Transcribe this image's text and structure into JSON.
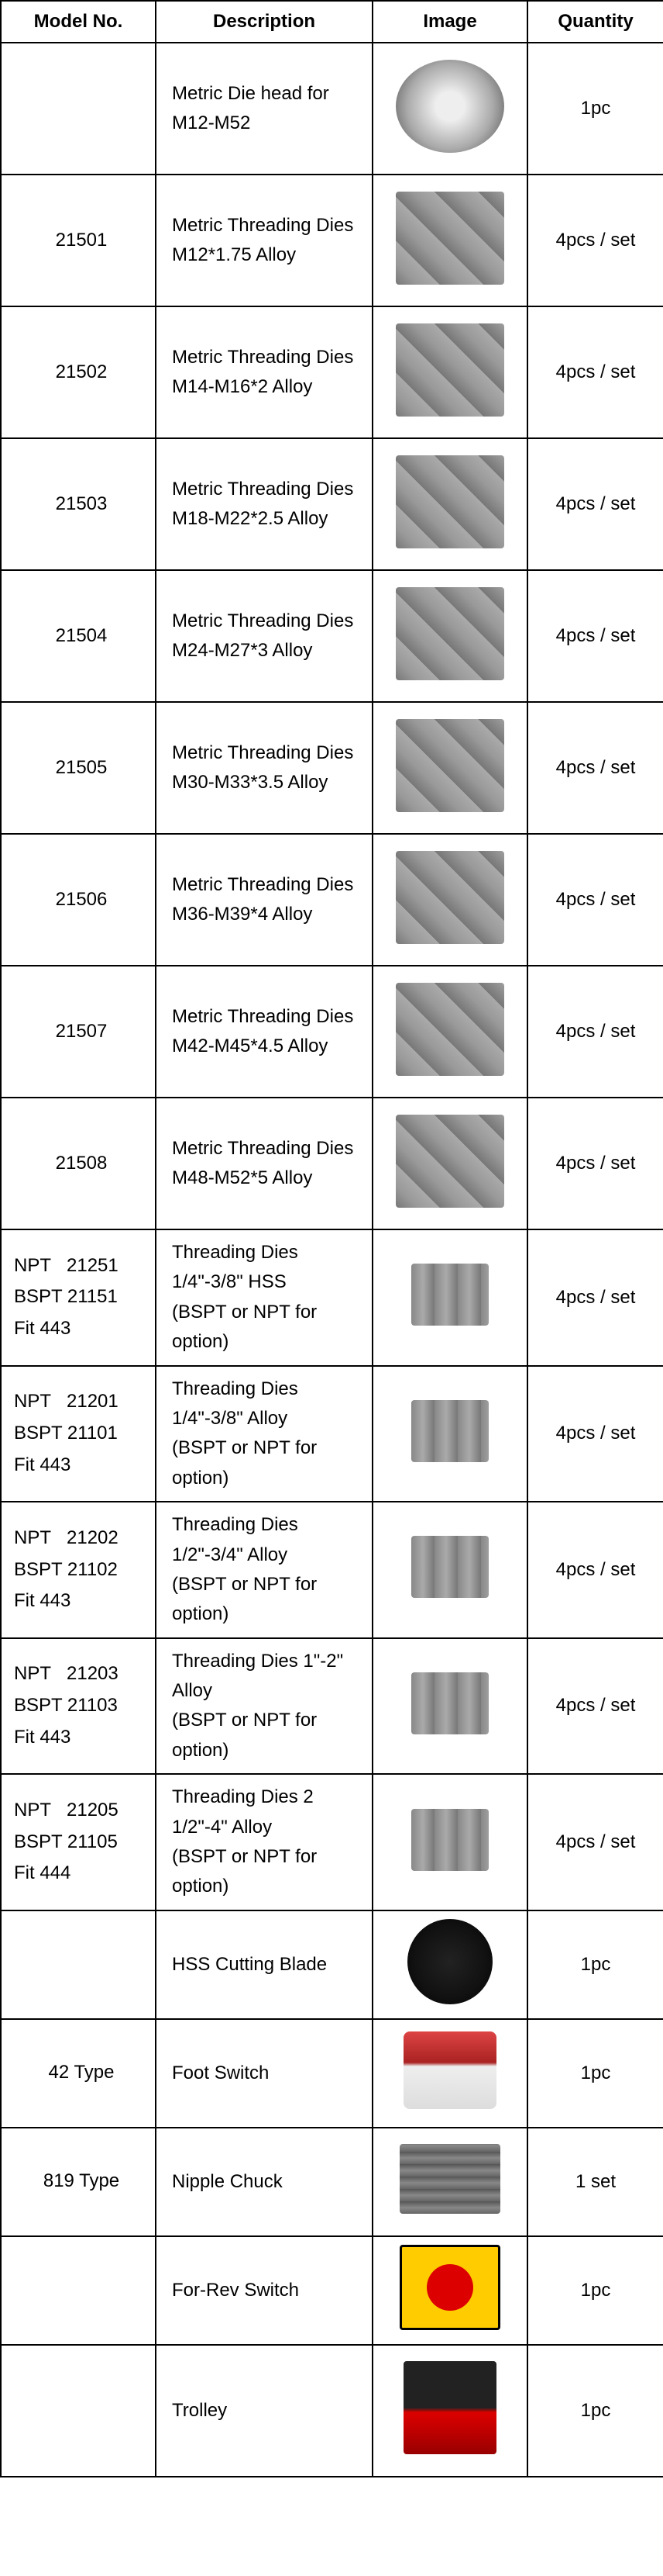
{
  "headers": {
    "model": "Model No.",
    "description": "Description",
    "image": "Image",
    "quantity": "Quantity"
  },
  "rows": [
    {
      "model": "",
      "modelClass": "center",
      "desc": "Metric Die head for M12-M52",
      "qty": "1pc",
      "imgClass": "die-head",
      "cellClass": "img-cell"
    },
    {
      "model": "21501",
      "modelClass": "center",
      "desc": "Metric Threading Dies\nM12*1.75 Alloy",
      "qty": "4pcs / set",
      "imgClass": "dies",
      "cellClass": "img-cell"
    },
    {
      "model": "21502",
      "modelClass": "center",
      "desc": "Metric Threading Dies\nM14-M16*2 Alloy",
      "qty": "4pcs / set",
      "imgClass": "dies",
      "cellClass": "img-cell"
    },
    {
      "model": "21503",
      "modelClass": "center",
      "desc": "Metric Threading Dies\nM18-M22*2.5 Alloy",
      "qty": "4pcs / set",
      "imgClass": "dies",
      "cellClass": "img-cell"
    },
    {
      "model": "21504",
      "modelClass": "center",
      "desc": "Metric Threading Dies\nM24-M27*3 Alloy",
      "qty": "4pcs / set",
      "imgClass": "dies",
      "cellClass": "img-cell"
    },
    {
      "model": "21505",
      "modelClass": "center",
      "desc": "Metric Threading Dies\nM30-M33*3.5 Alloy",
      "qty": "4pcs / set",
      "imgClass": "dies",
      "cellClass": "img-cell"
    },
    {
      "model": "21506",
      "modelClass": "center",
      "desc": "Metric Threading Dies\nM36-M39*4 Alloy",
      "qty": "4pcs / set",
      "imgClass": "dies",
      "cellClass": "img-cell"
    },
    {
      "model": "21507",
      "modelClass": "center",
      "desc": "Metric Threading Dies\nM42-M45*4.5 Alloy",
      "qty": "4pcs / set",
      "imgClass": "dies",
      "cellClass": "img-cell"
    },
    {
      "model": "21508",
      "modelClass": "center",
      "desc": "Metric Threading Dies\nM48-M52*5 Alloy",
      "qty": "4pcs / set",
      "imgClass": "dies",
      "cellClass": "img-cell"
    },
    {
      "model": "NPT   21251\nBSPT 21151\nFit 443",
      "modelClass": "",
      "desc": "Threading Dies 1/4\"-3/8\" HSS\n(BSPT or NPT for option)",
      "qty": "4pcs / set",
      "imgClass": "hss",
      "cellClass": "img-short"
    },
    {
      "model": "NPT   21201\nBSPT 21101\nFit 443",
      "modelClass": "",
      "desc": "Threading Dies 1/4\"-3/8\" Alloy\n(BSPT or NPT for option)",
      "qty": "4pcs / set",
      "imgClass": "hss",
      "cellClass": "img-cell"
    },
    {
      "model": "NPT   21202\nBSPT 21102\nFit 443",
      "modelClass": "",
      "desc": "Threading Dies 1/2\"-3/4\" Alloy\n(BSPT or NPT for option)",
      "qty": "4pcs / set",
      "imgClass": "hss",
      "cellClass": "img-cell"
    },
    {
      "model": "NPT   21203\nBSPT 21103\nFit 443",
      "modelClass": "",
      "desc": "Threading Dies 1\"-2\" Alloy\n(BSPT or NPT for option)",
      "qty": "4pcs / set",
      "imgClass": "hss",
      "cellClass": "img-cell"
    },
    {
      "model": "NPT   21205\nBSPT 21105\nFit 444",
      "modelClass": "",
      "desc": "Threading Dies 2 1/2\"-4\" Alloy\n(BSPT or NPT for option)",
      "qty": "4pcs / set",
      "imgClass": "hss",
      "cellClass": "img-cell"
    },
    {
      "model": "",
      "modelClass": "center",
      "desc": "HSS Cutting Blade",
      "qty": "1pc",
      "imgClass": "blade",
      "cellClass": "img-med"
    },
    {
      "model": "42 Type",
      "modelClass": "center",
      "desc": "Foot Switch",
      "qty": "1pc",
      "imgClass": "foot",
      "cellClass": "img-med"
    },
    {
      "model": "819 Type",
      "modelClass": "center",
      "desc": "Nipple Chuck",
      "qty": "1 set",
      "imgClass": "nipple",
      "cellClass": "img-med"
    },
    {
      "model": "",
      "modelClass": "center",
      "desc": "For-Rev Switch",
      "qty": "1pc",
      "imgClass": "switch",
      "cellClass": "img-med"
    },
    {
      "model": "",
      "modelClass": "center",
      "desc": "Trolley",
      "qty": "1pc",
      "imgClass": "trolley",
      "cellClass": "img-cell"
    }
  ]
}
